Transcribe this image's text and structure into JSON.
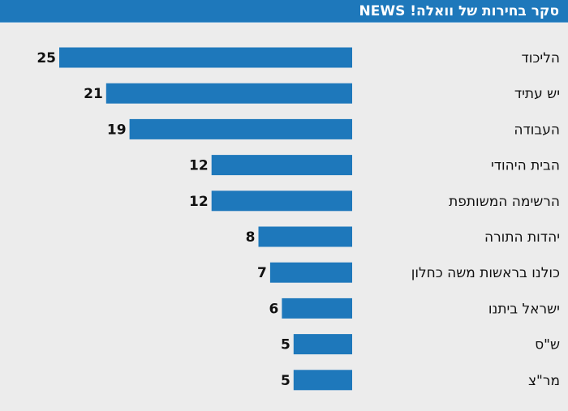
{
  "header": {
    "title": "סקר בחירות של וואלה! NEWS"
  },
  "colors": {
    "header_background": "#1e78bb",
    "bar": "#1e78bb",
    "background": "#ececec"
  },
  "chart_data": {
    "type": "bar",
    "orientation": "horizontal",
    "title": "סקר בחירות של וואלה! NEWS",
    "xlabel": "",
    "ylabel": "",
    "grid": false,
    "categories": [
      "הליכוד",
      "יש עתיד",
      "העבודה",
      "הבית היהודי",
      "הרשימה המשותפת",
      "יהדות התורה",
      "כולנו בראשות משה כחלון",
      "ישראל ביתנו",
      "ש\"ס",
      "מר\"צ"
    ],
    "values": [
      25,
      21,
      19,
      12,
      12,
      8,
      7,
      6,
      5,
      5
    ],
    "data_labels": [
      "25",
      "21",
      "19",
      "12",
      "12",
      "8",
      "7",
      "6",
      "5",
      "5"
    ]
  }
}
